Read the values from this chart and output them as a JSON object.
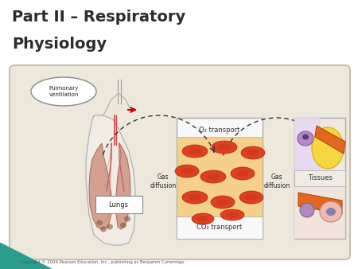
{
  "title_line1": "Part II – Respiratory",
  "title_line2": "Physiology",
  "title_color": "#2c2c2c",
  "title_fontsize": 14,
  "slide_bg": "#ffffff",
  "diagram_bg": "#ede8dc",
  "diagram_border": "#c8c0b0",
  "transport_box_bg": "#f8f8f8",
  "transport_box_border": "#aaaaaa",
  "blood_cell_color": "#e04020",
  "blood_cell_inner": "#c83010",
  "blood_bg_color": "#f5d08a",
  "o2_label": "O₂ transport",
  "co2_label": "CO₂ transport",
  "gas_diff_left": "Gas\ndiffusion",
  "gas_diff_right": "Gas\ndiffusion",
  "lungs_label": "Lungs",
  "pulmonary_label": "Pulmonary\nventilation",
  "tissues_label": "Tissues",
  "copyright": "Copyright © 2004 Pearson Education, Inc., publishing as Benjamin Cummings.",
  "teal_color": "#2a9d8f",
  "red_arrow_color": "#cc0000",
  "dashed_arrow_color": "#333333",
  "body_color": "#f0ece4",
  "body_edge_color": "#aaaaaa",
  "lung_color": "#d4a090",
  "lung_edge_color": "#b07060"
}
